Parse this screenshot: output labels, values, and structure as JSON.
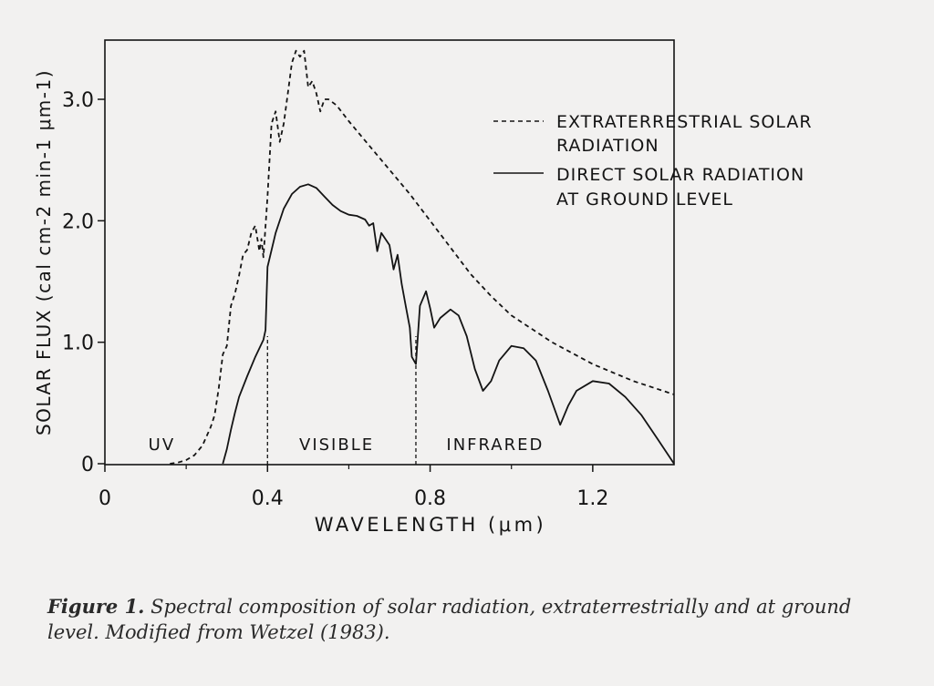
{
  "chart_data": {
    "type": "line",
    "xlabel": "WAVELENGTH  (μm)",
    "ylabel": "SOLAR   FLUX (cal cm-2 min-1  μm-1)",
    "xlim": [
      0,
      1.4
    ],
    "ylim": [
      0,
      3.5
    ],
    "x_ticks": [
      {
        "value": 0,
        "label": "0"
      },
      {
        "value": 0.4,
        "label": "0.4"
      },
      {
        "value": 0.8,
        "label": "0.8"
      },
      {
        "value": 1.2,
        "label": "1.2"
      }
    ],
    "y_ticks": [
      {
        "value": 0,
        "label": "0"
      },
      {
        "value": 1.0,
        "label": "1.0"
      },
      {
        "value": 2.0,
        "label": "2.0"
      },
      {
        "value": 3.0,
        "label": "3.0"
      }
    ],
    "regions": [
      {
        "label": "UV",
        "x": 0.14
      },
      {
        "label": "VISIBLE",
        "x": 0.57
      },
      {
        "label": "INFRARED",
        "x": 0.96
      }
    ],
    "boundaries": [
      0.4,
      0.765
    ],
    "grid": false,
    "legend_position": "top-right",
    "series": [
      {
        "name": "EXTRATERRESTRIAL  SOLAR RADIATION",
        "style": "dashed",
        "color": "#141414",
        "points": [
          [
            0.16,
            0.0
          ],
          [
            0.18,
            0.01
          ],
          [
            0.2,
            0.03
          ],
          [
            0.22,
            0.07
          ],
          [
            0.24,
            0.15
          ],
          [
            0.26,
            0.3
          ],
          [
            0.27,
            0.4
          ],
          [
            0.28,
            0.62
          ],
          [
            0.29,
            0.9
          ],
          [
            0.3,
            0.97
          ],
          [
            0.31,
            1.3
          ],
          [
            0.32,
            1.4
          ],
          [
            0.33,
            1.55
          ],
          [
            0.34,
            1.72
          ],
          [
            0.35,
            1.76
          ],
          [
            0.36,
            1.9
          ],
          [
            0.37,
            1.96
          ],
          [
            0.38,
            1.75
          ],
          [
            0.385,
            1.85
          ],
          [
            0.39,
            1.7
          ],
          [
            0.4,
            2.2
          ],
          [
            0.41,
            2.8
          ],
          [
            0.42,
            2.9
          ],
          [
            0.43,
            2.65
          ],
          [
            0.44,
            2.8
          ],
          [
            0.45,
            3.05
          ],
          [
            0.46,
            3.3
          ],
          [
            0.47,
            3.4
          ],
          [
            0.48,
            3.35
          ],
          [
            0.49,
            3.4
          ],
          [
            0.5,
            3.1
          ],
          [
            0.51,
            3.15
          ],
          [
            0.52,
            3.05
          ],
          [
            0.53,
            2.9
          ],
          [
            0.54,
            3.0
          ],
          [
            0.55,
            3.0
          ],
          [
            0.57,
            2.95
          ],
          [
            0.6,
            2.82
          ],
          [
            0.65,
            2.62
          ],
          [
            0.7,
            2.42
          ],
          [
            0.75,
            2.22
          ],
          [
            0.8,
            2.0
          ],
          [
            0.85,
            1.78
          ],
          [
            0.9,
            1.56
          ],
          [
            0.95,
            1.38
          ],
          [
            1.0,
            1.22
          ],
          [
            1.1,
            1.0
          ],
          [
            1.2,
            0.82
          ],
          [
            1.3,
            0.68
          ],
          [
            1.4,
            0.57
          ]
        ]
      },
      {
        "name": "DIRECT SOLAR RADIATION AT GROUND LEVEL",
        "style": "solid",
        "color": "#141414",
        "points": [
          [
            0.29,
            0.0
          ],
          [
            0.3,
            0.12
          ],
          [
            0.31,
            0.28
          ],
          [
            0.32,
            0.42
          ],
          [
            0.33,
            0.55
          ],
          [
            0.35,
            0.72
          ],
          [
            0.37,
            0.88
          ],
          [
            0.39,
            1.02
          ],
          [
            0.395,
            1.1
          ],
          [
            0.4,
            1.62
          ],
          [
            0.42,
            1.9
          ],
          [
            0.44,
            2.1
          ],
          [
            0.46,
            2.22
          ],
          [
            0.48,
            2.28
          ],
          [
            0.5,
            2.3
          ],
          [
            0.52,
            2.27
          ],
          [
            0.54,
            2.2
          ],
          [
            0.56,
            2.13
          ],
          [
            0.58,
            2.08
          ],
          [
            0.6,
            2.05
          ],
          [
            0.62,
            2.04
          ],
          [
            0.64,
            2.01
          ],
          [
            0.65,
            1.96
          ],
          [
            0.66,
            1.98
          ],
          [
            0.67,
            1.75
          ],
          [
            0.68,
            1.9
          ],
          [
            0.7,
            1.8
          ],
          [
            0.71,
            1.6
          ],
          [
            0.72,
            1.72
          ],
          [
            0.73,
            1.48
          ],
          [
            0.74,
            1.3
          ],
          [
            0.75,
            1.12
          ],
          [
            0.755,
            0.88
          ],
          [
            0.765,
            0.82
          ],
          [
            0.775,
            1.3
          ],
          [
            0.79,
            1.42
          ],
          [
            0.8,
            1.28
          ],
          [
            0.81,
            1.12
          ],
          [
            0.825,
            1.2
          ],
          [
            0.85,
            1.27
          ],
          [
            0.87,
            1.22
          ],
          [
            0.89,
            1.05
          ],
          [
            0.91,
            0.78
          ],
          [
            0.93,
            0.6
          ],
          [
            0.95,
            0.68
          ],
          [
            0.97,
            0.85
          ],
          [
            1.0,
            0.97
          ],
          [
            1.03,
            0.95
          ],
          [
            1.06,
            0.85
          ],
          [
            1.09,
            0.6
          ],
          [
            1.12,
            0.32
          ],
          [
            1.14,
            0.48
          ],
          [
            1.16,
            0.6
          ],
          [
            1.2,
            0.68
          ],
          [
            1.24,
            0.66
          ],
          [
            1.28,
            0.55
          ],
          [
            1.32,
            0.4
          ],
          [
            1.36,
            0.2
          ],
          [
            1.39,
            0.05
          ],
          [
            1.4,
            0.0
          ]
        ]
      }
    ]
  },
  "legend": {
    "dashed_line1": "EXTRATERRESTRIAL  SOLAR",
    "dashed_line2": "RADIATION",
    "solid_line1": "DIRECT SOLAR RADIATION",
    "solid_line2": "AT GROUND LEVEL"
  },
  "caption": {
    "lead": "Figure 1.",
    "text": " Spectral composition of solar radiation, extraterrestrially and at ground level. Modified from Wetzel (1983)."
  },
  "colors": {
    "ink": "#141414",
    "background": "#f2f1f0"
  }
}
